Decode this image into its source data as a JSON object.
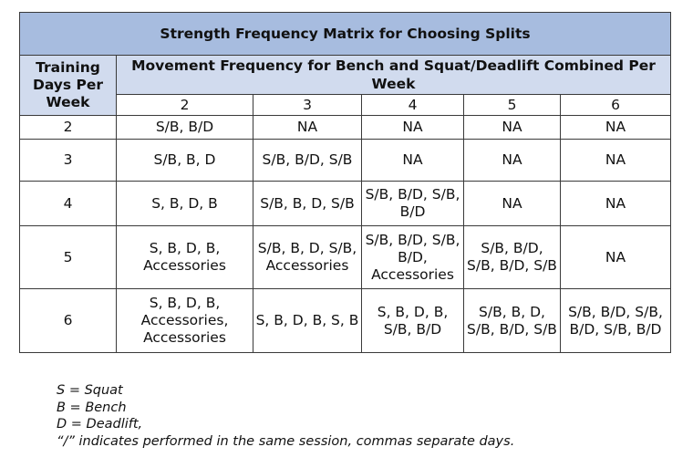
{
  "table": {
    "title": "Strength Frequency Matrix for Choosing Splits",
    "row_header": "Training Days Per Week",
    "col_group_header": "Movement Frequency for Bench and Squat/Deadlift Combined Per Week",
    "columns": [
      "2",
      "3",
      "4",
      "5",
      "6"
    ],
    "rows": [
      {
        "days": "2",
        "cells": [
          "S/B, B/D",
          "NA",
          "NA",
          "NA",
          "NA"
        ]
      },
      {
        "days": "3",
        "cells": [
          "S/B, B, D",
          "S/B, B/D, S/B",
          "NA",
          "NA",
          "NA"
        ]
      },
      {
        "days": "4",
        "cells": [
          "S, B, D, B",
          "S/B, B, D, S/B",
          "S/B, B/D, S/B, B/D",
          "NA",
          "NA"
        ]
      },
      {
        "days": "5",
        "cells": [
          "S, B, D, B, Accessories",
          "S/B, B, D, S/B, Accessories",
          "S/B, B/D, S/B, B/D, Accessories",
          "S/B, B/D, S/B, B/D, S/B",
          "NA"
        ]
      },
      {
        "days": "6",
        "cells": [
          "S, B, D, B, Accessories, Accessories",
          "S, B, D, B, S, B",
          "S, B, D, B, S/B, B/D",
          "S/B, B, D, S/B, B/D, S/B",
          "S/B, B/D, S/B, B/D, S/B, B/D"
        ]
      }
    ]
  },
  "legend": [
    "S = Squat",
    "B = Bench",
    "D = Deadlift,",
    "“/” indicates performed in the same session, commas separate days."
  ]
}
